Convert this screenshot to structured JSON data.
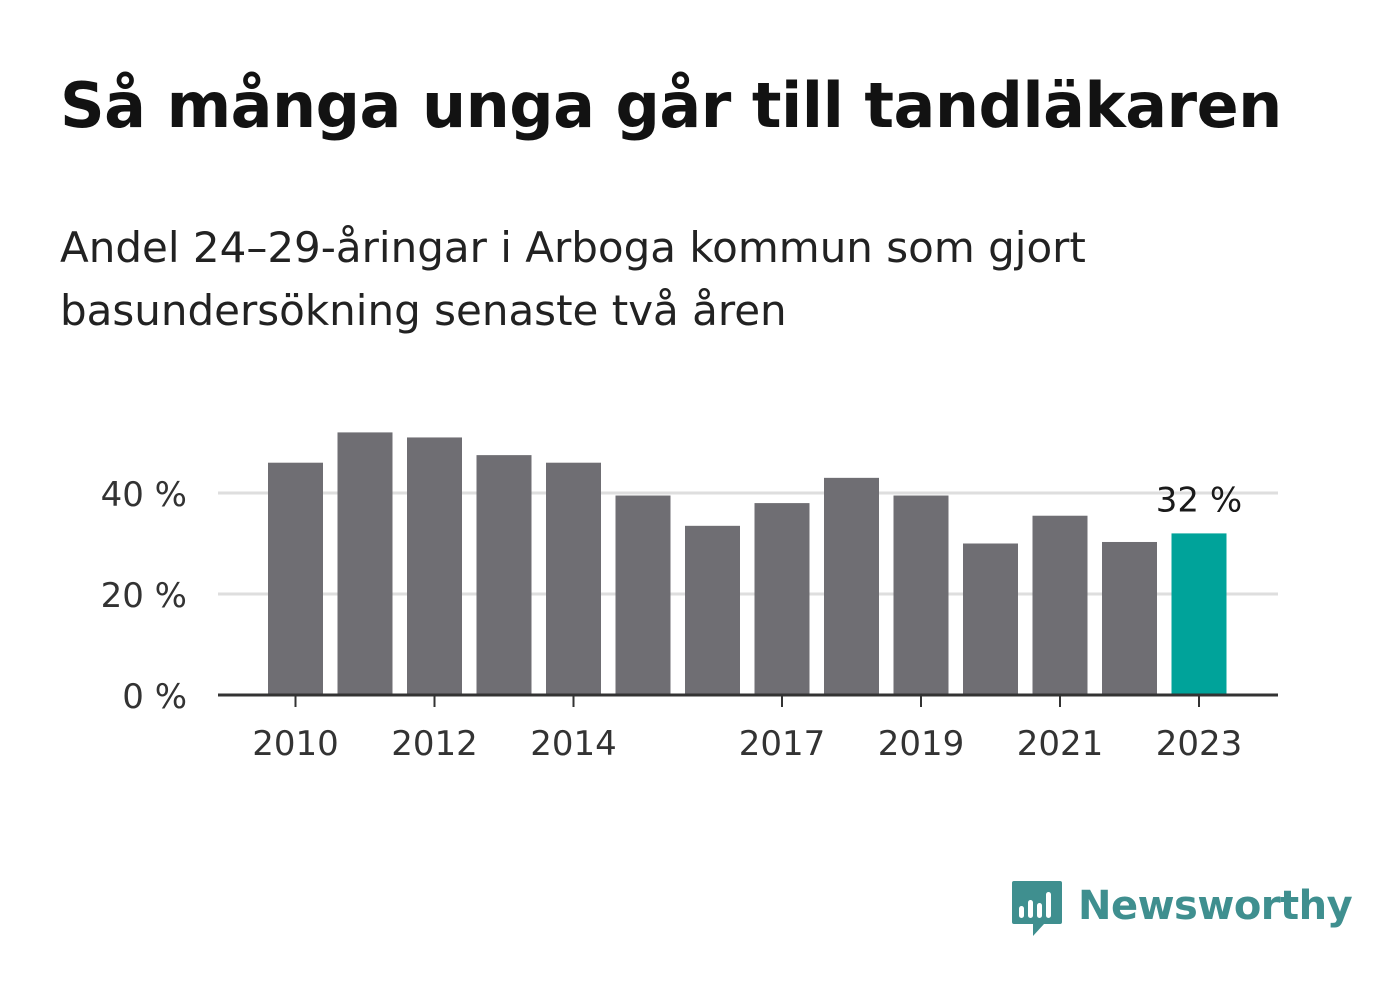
{
  "header": {
    "title": "Så många unga går till tandläkaren",
    "subtitle": "Andel 24–29-åringar i Arboga kommun som gjort basundersökning senaste två åren"
  },
  "chart_data": {
    "type": "bar",
    "categories": [
      "2010",
      "2011",
      "2012",
      "2013",
      "2014",
      "2015",
      "2016",
      "2017",
      "2018",
      "2019",
      "2020",
      "2021",
      "2022",
      "2023"
    ],
    "values": [
      46,
      52,
      51,
      47.5,
      46,
      39.5,
      33.5,
      38,
      43,
      39.5,
      30,
      35.5,
      30.3,
      32
    ],
    "x_tick_labels": [
      "2010",
      "2012",
      "2014",
      "2017",
      "2019",
      "2021",
      "2023"
    ],
    "y_ticks": [
      0,
      20,
      40
    ],
    "y_tick_labels": [
      "0 %",
      "20 %",
      "40 %"
    ],
    "ylim": [
      0,
      55
    ],
    "highlight": {
      "category": "2023",
      "label": "32 %"
    },
    "grid": true,
    "colors": {
      "bar": "#6f6e73",
      "highlight": "#00a39a",
      "grid": "#dedede",
      "axis": "#333333",
      "text": "#333333"
    }
  },
  "brand": {
    "name": "Newsworthy",
    "icon": "newsworthy-logo-icon",
    "color": "#3f8f8f"
  }
}
